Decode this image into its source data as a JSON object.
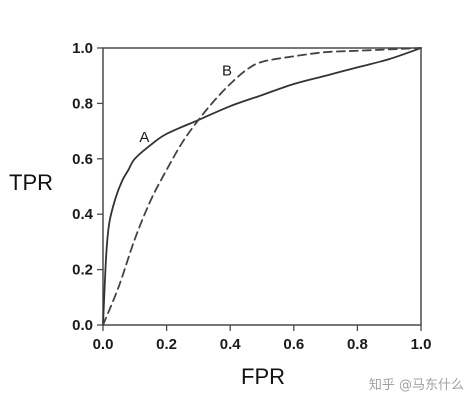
{
  "chart_data": {
    "type": "line",
    "xlabel": "FPR",
    "ylabel": "TPR",
    "xlim": [
      0.0,
      1.0
    ],
    "ylim": [
      0.0,
      1.0
    ],
    "x_ticks": [
      "0.0",
      "0.2",
      "0.4",
      "0.6",
      "0.8",
      "1.0"
    ],
    "y_ticks": [
      "0.0",
      "0.2",
      "0.4",
      "0.6",
      "0.8",
      "1.0"
    ],
    "grid": false,
    "series": [
      {
        "name": "A",
        "style": "solid",
        "color": "#333333",
        "x": [
          0.0,
          0.01,
          0.02,
          0.04,
          0.06,
          0.08,
          0.1,
          0.15,
          0.2,
          0.3,
          0.4,
          0.5,
          0.6,
          0.7,
          0.8,
          0.9,
          1.0
        ],
        "y": [
          0.0,
          0.25,
          0.37,
          0.46,
          0.52,
          0.56,
          0.6,
          0.65,
          0.69,
          0.74,
          0.79,
          0.83,
          0.87,
          0.9,
          0.93,
          0.96,
          1.0
        ]
      },
      {
        "name": "B",
        "style": "dashed",
        "color": "#444444",
        "x": [
          0.0,
          0.05,
          0.1,
          0.15,
          0.2,
          0.25,
          0.3,
          0.35,
          0.4,
          0.45,
          0.5,
          0.6,
          0.7,
          0.8,
          0.9,
          1.0
        ],
        "y": [
          0.0,
          0.14,
          0.31,
          0.45,
          0.56,
          0.66,
          0.74,
          0.81,
          0.87,
          0.92,
          0.95,
          0.97,
          0.985,
          0.99,
          0.995,
          1.0
        ]
      }
    ],
    "annotations": [
      {
        "text": "A",
        "x": 0.13,
        "y": 0.66
      },
      {
        "text": "B",
        "x": 0.39,
        "y": 0.9
      }
    ]
  },
  "watermark": "知乎 @马东什么"
}
